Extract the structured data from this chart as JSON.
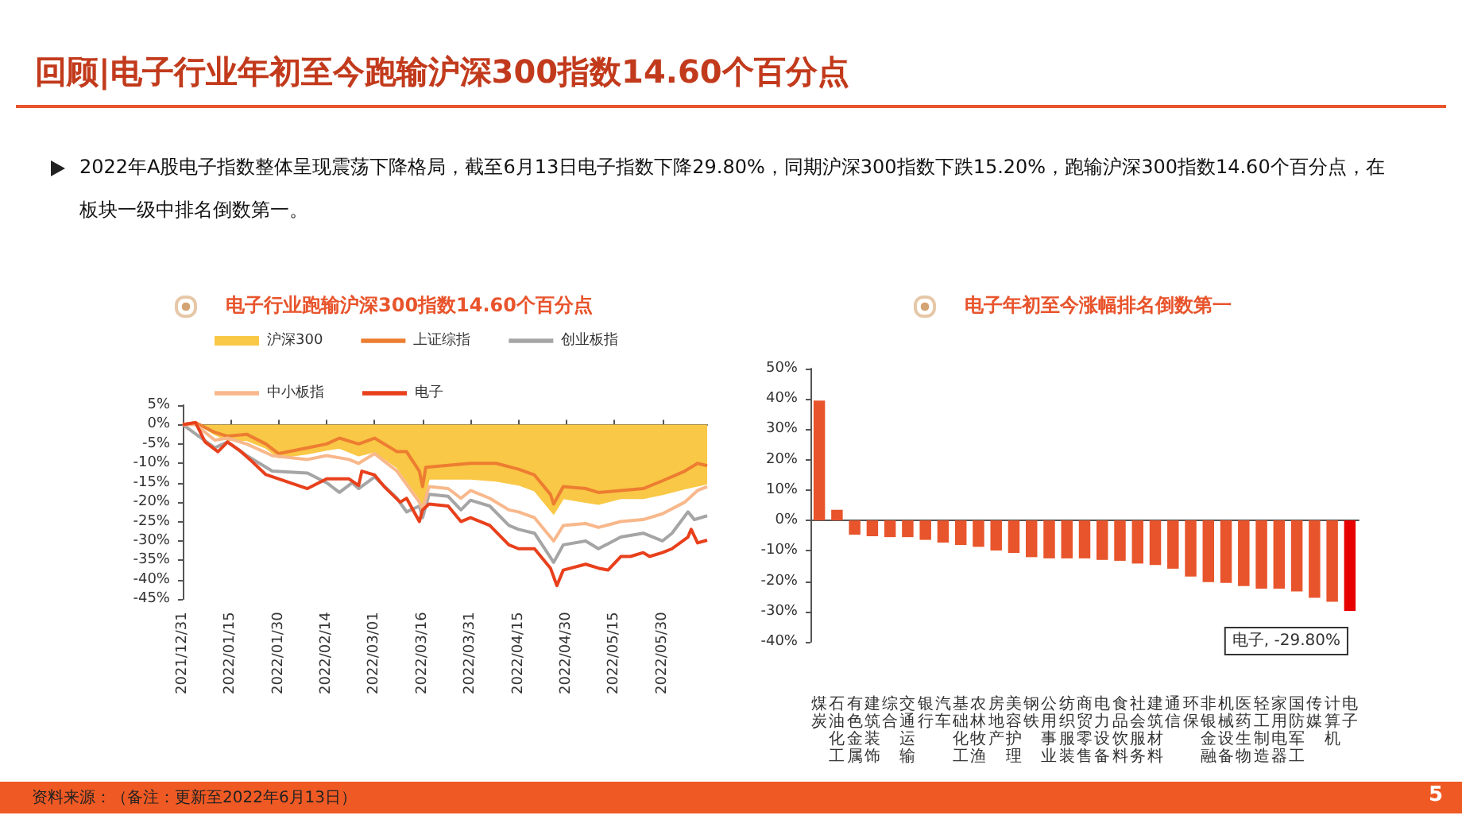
{
  "chart_data": [
    {
      "type": "line",
      "title": "电子行业跑输沪深300指数14.60个百分点",
      "annotations": [
        "回顾|电子行业年初至今跑输沪深300指数14.60个百分点",
        "2022年A股电子指数整体呈现震荡下降格局，截至6月13日电子指数下降29.80%，同期沪深300指数下跌15.20%，跑输沪深300指数14.60个百分点，在板块一级中排名倒数第一。",
        "资料来源：（备注：更新至2022年6月13日）",
        "5"
      ],
      "series": [
        {
          "name": "沪深300",
          "type": "area",
          "color": "#f9c846",
          "x": [
            "2021-12-31",
            "2022-01-04",
            "2022-01-10",
            "2022-01-14",
            "2022-01-20",
            "2022-01-26",
            "2022-01-30",
            "2022-02-08",
            "2022-02-14",
            "2022-02-18",
            "2022-02-24",
            "2022-03-01",
            "2022-03-08",
            "2022-03-15",
            "2022-03-16",
            "2022-03-18",
            "2022-03-24",
            "2022-03-31",
            "2022-04-08",
            "2022-04-15",
            "2022-04-20",
            "2022-04-26",
            "2022-04-29",
            "2022-05-06",
            "2022-05-10",
            "2022-05-17",
            "2022-05-24",
            "2022-05-30",
            "2022-06-06",
            "2022-06-13"
          ],
          "values": [
            0,
            0.5,
            -2.5,
            -4,
            -4,
            -6,
            -8.5,
            -7.5,
            -6.5,
            -6,
            -8,
            -7,
            -11,
            -19,
            -21,
            -14,
            -14,
            -14,
            -14.5,
            -15.5,
            -17,
            -23,
            -19,
            -20,
            -20.5,
            -19,
            -19,
            -18,
            -16.5,
            -15.2
          ]
        },
        {
          "name": "上证综指",
          "color": "#ed7d31",
          "x": [
            "2021-12-31",
            "2022-01-04",
            "2022-01-10",
            "2022-01-14",
            "2022-01-20",
            "2022-01-26",
            "2022-01-30",
            "2022-02-08",
            "2022-02-14",
            "2022-02-18",
            "2022-02-24",
            "2022-03-01",
            "2022-03-08",
            "2022-03-11",
            "2022-03-15",
            "2022-03-16",
            "2022-03-17",
            "2022-03-24",
            "2022-03-31",
            "2022-04-08",
            "2022-04-15",
            "2022-04-20",
            "2022-04-25",
            "2022-04-26",
            "2022-04-29",
            "2022-05-06",
            "2022-05-10",
            "2022-05-17",
            "2022-05-24",
            "2022-05-30",
            "2022-06-06",
            "2022-06-10",
            "2022-06-13"
          ],
          "values": [
            0,
            0.5,
            -2,
            -3,
            -2.5,
            -5,
            -7.5,
            -6,
            -5,
            -3.5,
            -5,
            -3.5,
            -7,
            -7,
            -12,
            -16,
            -11,
            -10.5,
            -10,
            -10,
            -11.5,
            -13,
            -18,
            -20.5,
            -16,
            -16.5,
            -17.5,
            -17,
            -16.5,
            -14.5,
            -12,
            -10,
            -10.6
          ]
        },
        {
          "name": "创业板指",
          "color": "#a5a5a5",
          "x": [
            "2021-12-31",
            "2022-01-05",
            "2022-01-10",
            "2022-01-14",
            "2022-01-20",
            "2022-01-28",
            "2022-02-08",
            "2022-02-14",
            "2022-02-18",
            "2022-02-22",
            "2022-02-24",
            "2022-03-01",
            "2022-03-08",
            "2022-03-11",
            "2022-03-15",
            "2022-03-16",
            "2022-03-18",
            "2022-03-24",
            "2022-03-28",
            "2022-03-31",
            "2022-04-06",
            "2022-04-12",
            "2022-04-15",
            "2022-04-20",
            "2022-04-26",
            "2022-04-29",
            "2022-05-06",
            "2022-05-10",
            "2022-05-17",
            "2022-05-24",
            "2022-05-30",
            "2022-06-02",
            "2022-06-07",
            "2022-06-09",
            "2022-06-13"
          ],
          "values": [
            0,
            -3,
            -6,
            -4.5,
            -8,
            -12,
            -12.5,
            -15,
            -17.5,
            -15,
            -16.5,
            -13.5,
            -19,
            -22.5,
            -21,
            -24,
            -18,
            -18.5,
            -22,
            -19.5,
            -21,
            -26,
            -27,
            -28,
            -35.5,
            -31,
            -30,
            -32,
            -29,
            -28,
            -30,
            -28,
            -22.5,
            -24.5,
            -23.5
          ]
        },
        {
          "name": "中小板指",
          "color": "#f8b88b",
          "x": [
            "2021-12-31",
            "2022-01-04",
            "2022-01-10",
            "2022-01-14",
            "2022-01-20",
            "2022-01-28",
            "2022-02-08",
            "2022-02-14",
            "2022-02-21",
            "2022-02-24",
            "2022-03-01",
            "2022-03-08",
            "2022-03-15",
            "2022-03-16",
            "2022-03-18",
            "2022-03-24",
            "2022-03-28",
            "2022-03-31",
            "2022-04-06",
            "2022-04-12",
            "2022-04-15",
            "2022-04-20",
            "2022-04-26",
            "2022-04-29",
            "2022-05-06",
            "2022-05-10",
            "2022-05-17",
            "2022-05-24",
            "2022-05-30",
            "2022-06-06",
            "2022-06-10",
            "2022-06-13"
          ],
          "values": [
            0,
            0,
            -4,
            -3.5,
            -5,
            -8,
            -9,
            -8,
            -9,
            -10,
            -7.5,
            -12,
            -20,
            -22,
            -16,
            -16.5,
            -19,
            -17,
            -19,
            -22,
            -22.5,
            -24,
            -30,
            -26,
            -25.5,
            -26.5,
            -25,
            -24.5,
            -23,
            -20,
            -17,
            -16
          ]
        },
        {
          "name": "电子",
          "color": "#e8401c",
          "x": [
            "2021-12-31",
            "2022-01-04",
            "2022-01-07",
            "2022-01-11",
            "2022-01-14",
            "2022-01-18",
            "2022-01-21",
            "2022-01-26",
            "2022-02-08",
            "2022-02-14",
            "2022-02-21",
            "2022-02-24",
            "2022-02-25",
            "2022-03-01",
            "2022-03-04",
            "2022-03-09",
            "2022-03-11",
            "2022-03-15",
            "2022-03-16",
            "2022-03-18",
            "2022-03-24",
            "2022-03-28",
            "2022-03-31",
            "2022-04-06",
            "2022-04-12",
            "2022-04-15",
            "2022-04-20",
            "2022-04-25",
            "2022-04-27",
            "2022-04-29",
            "2022-05-06",
            "2022-05-10",
            "2022-05-13",
            "2022-05-17",
            "2022-05-20",
            "2022-05-24",
            "2022-05-26",
            "2022-05-30",
            "2022-06-02",
            "2022-06-07",
            "2022-06-08",
            "2022-06-10",
            "2022-06-13"
          ],
          "values": [
            0,
            0.5,
            -4.5,
            -7,
            -4.5,
            -6.8,
            -9,
            -12.9,
            -16.5,
            -14,
            -14,
            -15.7,
            -12,
            -13,
            -16,
            -20,
            -19,
            -25,
            -22,
            -20.5,
            -21,
            -25,
            -24,
            -26,
            -31,
            -32,
            -32,
            -37,
            -41.5,
            -37.5,
            -36,
            -37,
            -37.5,
            -34,
            -34,
            -33,
            -34,
            -33,
            -32,
            -29,
            -27,
            -30.5,
            -29.8
          ]
        }
      ],
      "xlim": [
        "2021-12-31",
        "2022-06-13"
      ],
      "xticks": [
        {
          "value": "2021-12-31",
          "label": "2021/12/31"
        },
        {
          "value": "2022-01-15",
          "label": "2022/01/15"
        },
        {
          "value": "2022-01-30",
          "label": "2022/01/30"
        },
        {
          "value": "2022-02-14",
          "label": "2022/02/14"
        },
        {
          "value": "2022-03-01",
          "label": "2022/03/01"
        },
        {
          "value": "2022-03-16",
          "label": "2022/03/16"
        },
        {
          "value": "2022-03-31",
          "label": "2022/03/31"
        },
        {
          "value": "2022-04-15",
          "label": "2022/04/15"
        },
        {
          "value": "2022-04-30",
          "label": "2022/04/30"
        },
        {
          "value": "2022-05-15",
          "label": "2022/05/15"
        },
        {
          "value": "2022-05-30",
          "label": "2022/05/30"
        }
      ],
      "ylim": [
        -45,
        5
      ],
      "yticks": [
        {
          "value": -45,
          "label": "-45%"
        },
        {
          "value": -40,
          "label": "-40%"
        },
        {
          "value": -35,
          "label": "-35%"
        },
        {
          "value": -30,
          "label": "-30%"
        },
        {
          "value": -25,
          "label": "-25%"
        },
        {
          "value": -20,
          "label": "-20%"
        },
        {
          "value": -15,
          "label": "-15%"
        },
        {
          "value": -10,
          "label": "-10%"
        },
        {
          "value": -5,
          "label": "-5%"
        },
        {
          "value": 0,
          "label": "0%"
        },
        {
          "value": 5,
          "label": "5%"
        }
      ],
      "legend": "top"
    },
    {
      "type": "bar",
      "title": "电子年初至今涨幅排名倒数第一",
      "categories": [
        "煤炭",
        "石油化工",
        "有色金属",
        "建筑装饰",
        "综合",
        "交通运输",
        "银行",
        "汽车",
        "基础化工",
        "农林牧渔",
        "房地产",
        "美容护理",
        "钢铁",
        "公用事业",
        "纺织服装",
        "商贸零售",
        "电力设备",
        "食品饮料",
        "社会服务",
        "建筑材料",
        "通信",
        "环保",
        "非银金融",
        "机械设备",
        "医药生物",
        "轻工制造",
        "家用电器",
        "国防军工",
        "传媒",
        "计算机",
        "电子"
      ],
      "values": [
        39.5,
        3.5,
        -4.7,
        -5.2,
        -5.5,
        -5.5,
        -6.4,
        -7.3,
        -8.1,
        -8.7,
        -9.9,
        -10.7,
        -12.1,
        -12.5,
        -12.5,
        -12.5,
        -13,
        -13.3,
        -14.2,
        -14.7,
        -15.9,
        -18.5,
        -20.3,
        -20.6,
        -21.6,
        -22.5,
        -22.5,
        -23.4,
        -25.5,
        -26.8,
        -29.8
      ],
      "colors": [
        "#e8542c",
        "#e8542c",
        "#e8542c",
        "#e8542c",
        "#e8542c",
        "#e8542c",
        "#e8542c",
        "#e8542c",
        "#e8542c",
        "#e8542c",
        "#e8542c",
        "#e8542c",
        "#e8542c",
        "#e8542c",
        "#e8542c",
        "#e8542c",
        "#e8542c",
        "#e8542c",
        "#e8542c",
        "#e8542c",
        "#e8542c",
        "#e8542c",
        "#e8542c",
        "#e8542c",
        "#e8542c",
        "#e8542c",
        "#e8542c",
        "#e8542c",
        "#e8542c",
        "#e8542c",
        "#e60000"
      ],
      "annotations": [
        {
          "text": "电子, -29.80%",
          "x": "电子",
          "y": -29.8
        }
      ],
      "ylim": [
        -40,
        50
      ],
      "yticks": [
        {
          "value": -40,
          "label": "-40%"
        },
        {
          "value": -30,
          "label": "-30%"
        },
        {
          "value": -20,
          "label": "-20%"
        },
        {
          "value": -10,
          "label": "-10%"
        },
        {
          "value": 0,
          "label": "0%"
        },
        {
          "value": 10,
          "label": "10%"
        },
        {
          "value": 20,
          "label": "20%"
        },
        {
          "value": 30,
          "label": "30%"
        },
        {
          "value": 40,
          "label": "40%"
        },
        {
          "value": 50,
          "label": "50%"
        }
      ]
    }
  ]
}
